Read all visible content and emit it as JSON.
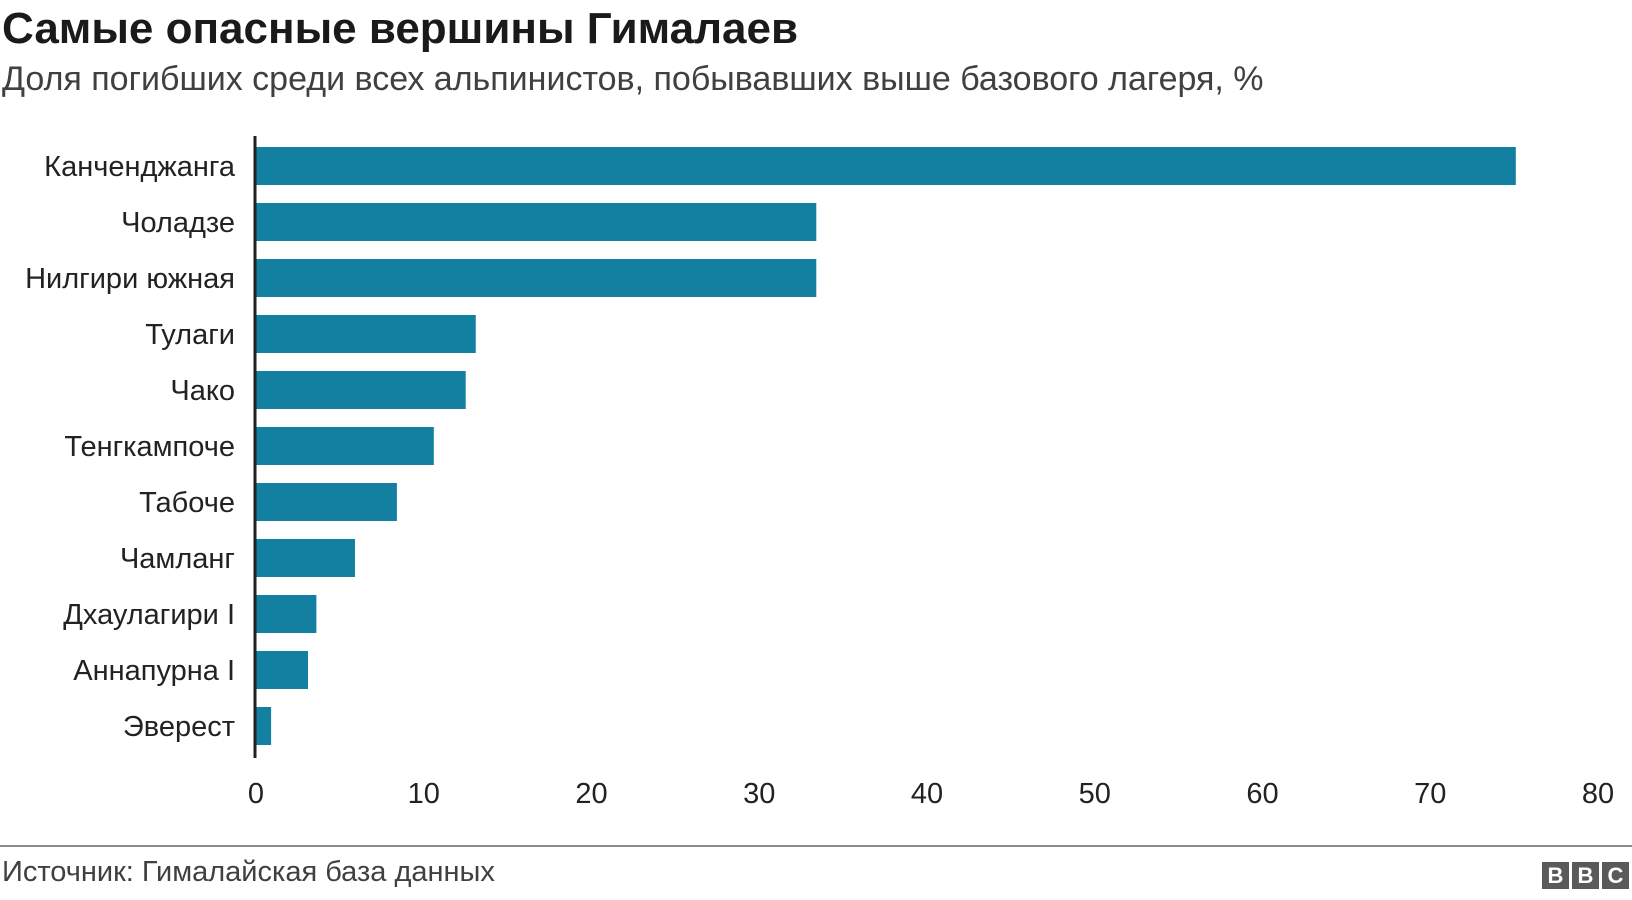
{
  "header": {
    "title": "Самые опасные вершины Гималаев",
    "subtitle": "Доля погибших среди всех альпинистов, побывавших выше базового лагеря, %"
  },
  "footer": {
    "source": "Источник: Гималайская база данных",
    "logo_letters": [
      "B",
      "B",
      "C"
    ]
  },
  "chart_data": {
    "type": "bar",
    "orientation": "horizontal",
    "title": "Самые опасные вершины Гималаев",
    "subtitle": "Доля погибших среди всех альпинистов, побывавших выше базового лагеря, %",
    "categories": [
      "Канченджанга",
      "Чоладзе",
      "Нилгири южная",
      "Тулаги",
      "Чако",
      "Тенгкампоче",
      "Табоче",
      "Чамланг",
      "Дхаулагири I",
      "Аннапурна I",
      "Эверест"
    ],
    "values": [
      75.1,
      33.4,
      33.4,
      13.1,
      12.5,
      10.6,
      8.4,
      5.9,
      3.6,
      3.1,
      0.9
    ],
    "xlim": [
      0,
      80
    ],
    "xticks": [
      0,
      10,
      20,
      30,
      40,
      50,
      60,
      70,
      80
    ],
    "grid": false,
    "bar_color": "#1380A1"
  }
}
